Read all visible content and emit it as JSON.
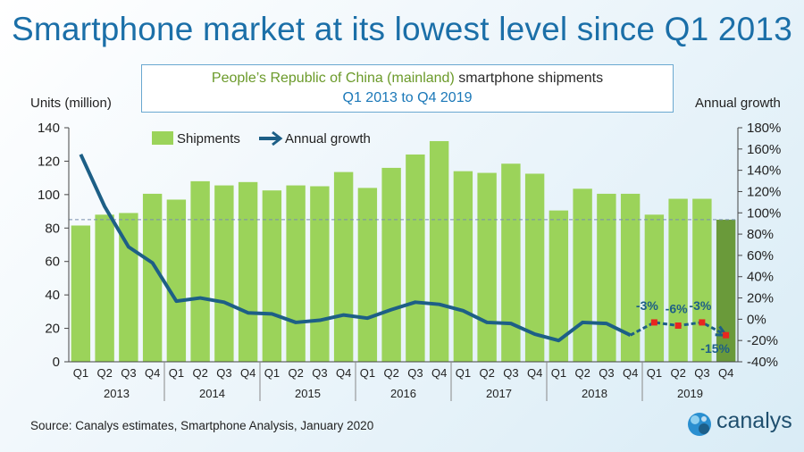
{
  "title": "Smartphone market at its lowest level since Q1 2013",
  "subtitle": {
    "part1": "People’s Republic of China (mainland)",
    "part2": "smartphone shipments",
    "line2": "Q1 2013 to Q4 2019"
  },
  "source": "Source:  Canalys estimates, Smartphone Analysis, January 2020",
  "logo_text": "canalys",
  "colors": {
    "bar": "#9bd35a",
    "bar_highlight": "#6a9a3a",
    "line": "#1d5f86",
    "marker": "#e8271f",
    "label": "#1d5f86",
    "title": "#1b6fa8"
  },
  "chart_data": {
    "type": "bar",
    "title": "",
    "ylabel": "Units (million)",
    "y2label": "Annual growth",
    "ylim": [
      0,
      140
    ],
    "y2lim": [
      -40,
      180
    ],
    "yticks": [
      0,
      20,
      40,
      60,
      80,
      100,
      120,
      140
    ],
    "y2ticks": [
      "-40%",
      "-20%",
      "0%",
      "20%",
      "40%",
      "60%",
      "80%",
      "100%",
      "120%",
      "140%",
      "160%",
      "180%"
    ],
    "reference_line": 85,
    "categories": [
      "Q1",
      "Q2",
      "Q3",
      "Q4",
      "Q1",
      "Q2",
      "Q3",
      "Q4",
      "Q1",
      "Q2",
      "Q3",
      "Q4",
      "Q1",
      "Q2",
      "Q3",
      "Q4",
      "Q1",
      "Q2",
      "Q3",
      "Q4",
      "Q1",
      "Q2",
      "Q3",
      "Q4",
      "Q1",
      "Q2",
      "Q3",
      "Q4"
    ],
    "years": [
      "2013",
      "2014",
      "2015",
      "2016",
      "2017",
      "2018",
      "2019"
    ],
    "legend": [
      "Shipments",
      "Annual growth"
    ],
    "series": [
      {
        "name": "Shipments",
        "type": "bar",
        "values": [
          81.5,
          88,
          89,
          100.5,
          97,
          108,
          105.5,
          107.5,
          102.5,
          105.5,
          105,
          113.5,
          104,
          116,
          124,
          132,
          114,
          113,
          118.5,
          112.5,
          90.5,
          103.5,
          100.5,
          100.5,
          88,
          97.5,
          97.5,
          85
        ]
      },
      {
        "name": "Annual growth",
        "type": "line",
        "axis": "right",
        "values": [
          155,
          106,
          68,
          53,
          17,
          20,
          16,
          6,
          5,
          -3,
          -1,
          4,
          1,
          9,
          16,
          14,
          8,
          -3,
          -4,
          -14,
          -20,
          -3,
          -4,
          -15,
          -3,
          -6,
          -3,
          -15
        ]
      }
    ],
    "annotations": [
      "-3%",
      "-6%",
      "-3%",
      "-15%"
    ]
  }
}
